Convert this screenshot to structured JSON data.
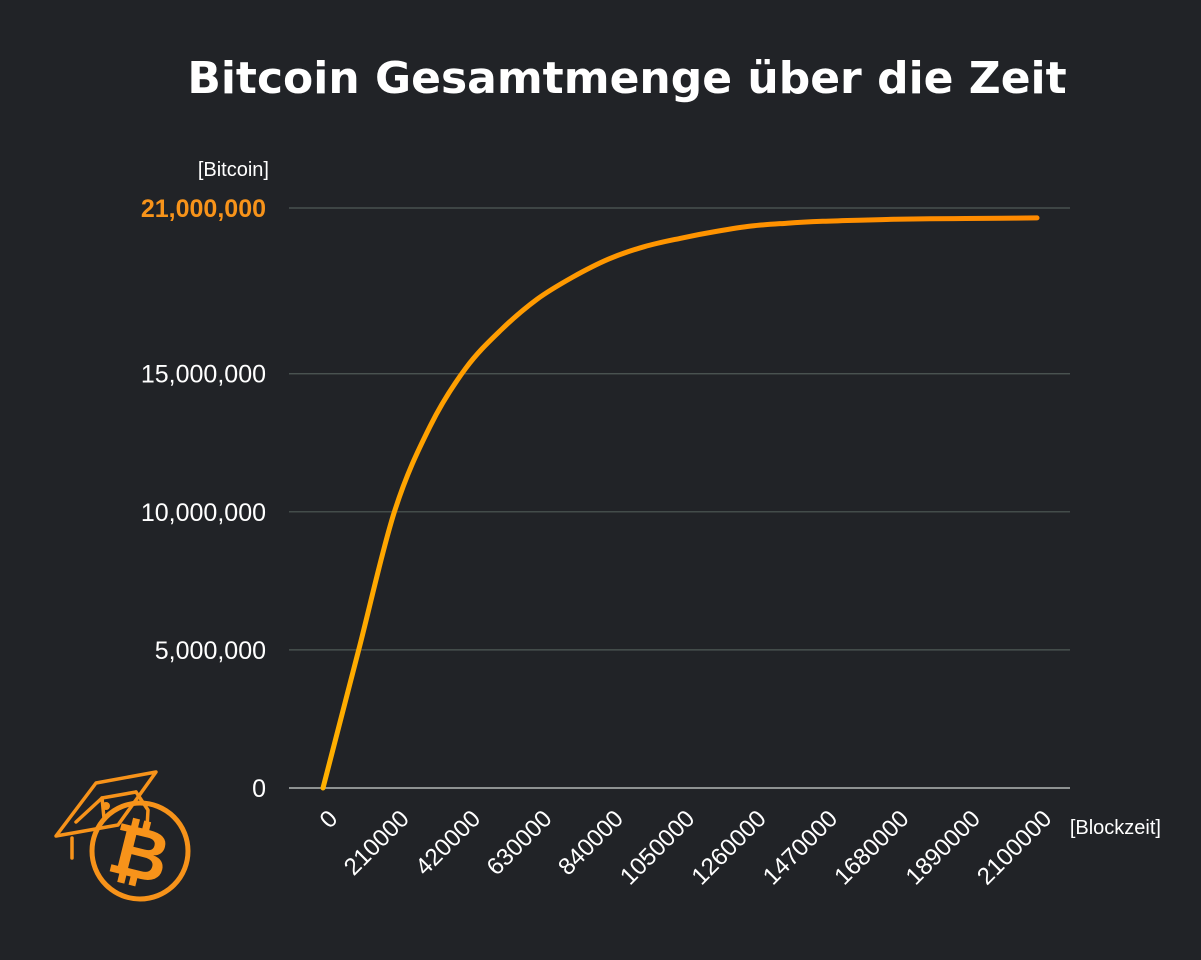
{
  "chart_data": {
    "type": "line",
    "title": "Bitcoin Gesamtmenge über die Zeit",
    "ylabel": "[Bitcoin]",
    "xlabel": "[Blockzeit]",
    "ylim": [
      0,
      21000000
    ],
    "xlim": [
      0,
      2100000
    ],
    "yticks": [
      {
        "value": 0,
        "label": "0",
        "highlight": false
      },
      {
        "value": 5000000,
        "label": "5,000,000",
        "highlight": false
      },
      {
        "value": 10000000,
        "label": "10,000,000",
        "highlight": false
      },
      {
        "value": 15000000,
        "label": "15,000,000",
        "highlight": false
      },
      {
        "value": 21000000,
        "label": "21,000,000",
        "highlight": true
      }
    ],
    "xticks": [
      {
        "value": 0,
        "label": "0"
      },
      {
        "value": 210000,
        "label": "210000"
      },
      {
        "value": 420000,
        "label": "420000"
      },
      {
        "value": 630000,
        "label": "630000"
      },
      {
        "value": 840000,
        "label": "840000"
      },
      {
        "value": 1050000,
        "label": "1050000"
      },
      {
        "value": 1260000,
        "label": "1260000"
      },
      {
        "value": 1470000,
        "label": "1470000"
      },
      {
        "value": 1680000,
        "label": "1680000"
      },
      {
        "value": 1890000,
        "label": "1890000"
      },
      {
        "value": 2100000,
        "label": "2100000"
      }
    ],
    "grid": true,
    "series": [
      {
        "x": [
          0,
          105000,
          210000,
          315000,
          420000,
          525000,
          630000,
          735000,
          840000,
          945000,
          1050000,
          1155000,
          1260000,
          1365000,
          1470000,
          1575000,
          1680000,
          1785000,
          1890000,
          1995000,
          2100000
        ],
        "values": [
          0,
          5000000,
          10000000,
          13100000,
          15200000,
          16600000,
          17700000,
          18500000,
          19150000,
          19600000,
          19900000,
          20150000,
          20350000,
          20450000,
          20520000,
          20560000,
          20590000,
          20610000,
          20620000,
          20630000,
          20640000
        ]
      }
    ],
    "colors": {
      "background": "#212327",
      "line_start": "#FFB000",
      "line_end": "#FF8A00",
      "grid": "#4F5A57",
      "axis": "#D0D4D2",
      "text": "#FFFFFF",
      "highlight": "#F7931A"
    }
  },
  "logo": {
    "icon": "bitcoin-graduation-cap-logo-icon",
    "glyph": "₿",
    "color": "#F7931A"
  }
}
